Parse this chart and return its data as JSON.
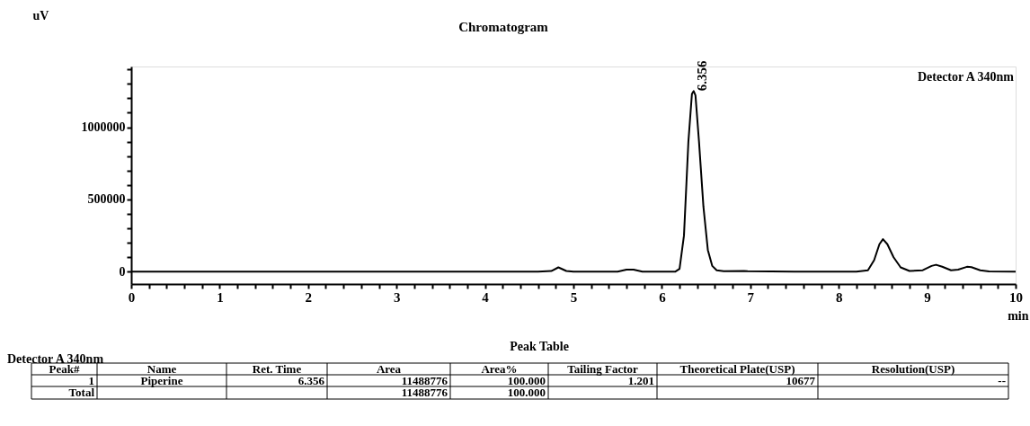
{
  "chart_data": {
    "type": "line",
    "title": "Chromatogram",
    "xlabel": "min",
    "ylabel": "uV",
    "x": [
      0,
      4.6,
      4.75,
      4.83,
      4.92,
      5.0,
      5.5,
      5.6,
      5.68,
      5.78,
      6.15,
      6.2,
      6.25,
      6.3,
      6.34,
      6.36,
      6.38,
      6.42,
      6.47,
      6.52,
      6.57,
      6.62,
      6.7,
      6.93,
      6.97,
      7.5,
      8.2,
      8.33,
      8.4,
      8.46,
      8.5,
      8.55,
      8.62,
      8.7,
      8.8,
      8.95,
      9.05,
      9.1,
      9.17,
      9.27,
      9.35,
      9.45,
      9.5,
      9.6,
      9.7,
      10
    ],
    "series": [
      {
        "color": "#000000",
        "values": [
          0,
          0,
          5000,
          30000,
          5000,
          0,
          0,
          15000,
          15000,
          0,
          0,
          20000,
          250000,
          900000,
          1230000,
          1250000,
          1220000,
          900000,
          450000,
          150000,
          40000,
          10000,
          3000,
          5000,
          3000,
          0,
          0,
          10000,
          80000,
          190000,
          225000,
          190000,
          100000,
          30000,
          5000,
          10000,
          40000,
          48000,
          35000,
          10000,
          15000,
          34000,
          32000,
          10000,
          2000,
          0
        ]
      }
    ],
    "xlim": [
      0,
      10
    ],
    "ylim": [
      -85000,
      1420000
    ],
    "xticks": [
      0,
      {
        "value": 0.2,
        "label": null
      },
      {
        "value": 0.4,
        "label": null
      },
      {
        "value": 0.6,
        "label": null
      },
      {
        "value": 0.8,
        "label": null
      },
      1,
      {
        "value": 1.2,
        "label": null
      },
      {
        "value": 1.4,
        "label": null
      },
      {
        "value": 1.6,
        "label": null
      },
      {
        "value": 1.8,
        "label": null
      },
      2,
      {
        "value": 2.2,
        "label": null
      },
      {
        "value": 2.4,
        "label": null
      },
      {
        "value": 2.6,
        "label": null
      },
      {
        "value": 2.8,
        "label": null
      },
      3,
      {
        "value": 3.2,
        "label": null
      },
      {
        "value": 3.4,
        "label": null
      },
      {
        "value": 3.6,
        "label": null
      },
      {
        "value": 3.8,
        "label": null
      },
      4,
      {
        "value": 4.2,
        "label": null
      },
      {
        "value": 4.4,
        "label": null
      },
      {
        "value": 4.6,
        "label": null
      },
      {
        "value": 4.8,
        "label": null
      },
      5,
      {
        "value": 5.2,
        "label": null
      },
      {
        "value": 5.4,
        "label": null
      },
      {
        "value": 5.6,
        "label": null
      },
      {
        "value": 5.8,
        "label": null
      },
      6,
      {
        "value": 6.2,
        "label": null
      },
      {
        "value": 6.4,
        "label": null
      },
      {
        "value": 6.6,
        "label": null
      },
      {
        "value": 6.8,
        "label": null
      },
      7,
      {
        "value": 7.2,
        "label": null
      },
      {
        "value": 7.4,
        "label": null
      },
      {
        "value": 7.6,
        "label": null
      },
      {
        "value": 7.8,
        "label": null
      },
      8,
      {
        "value": 8.2,
        "label": null
      },
      {
        "value": 8.4,
        "label": null
      },
      {
        "value": 8.6,
        "label": null
      },
      {
        "value": 8.8,
        "label": null
      },
      9,
      {
        "value": 9.2,
        "label": null
      },
      {
        "value": 9.4,
        "label": null
      },
      {
        "value": 9.6,
        "label": null
      },
      {
        "value": 9.8,
        "label": null
      },
      10
    ],
    "yticks": [
      0,
      {
        "value": 100000,
        "label": null
      },
      {
        "value": 200000,
        "label": null
      },
      {
        "value": 300000,
        "label": null
      },
      {
        "value": 400000,
        "label": null
      },
      500000,
      {
        "value": 600000,
        "label": null
      },
      {
        "value": 700000,
        "label": null
      },
      {
        "value": 800000,
        "label": null
      },
      {
        "value": 900000,
        "label": null
      },
      1000000,
      {
        "value": 1100000,
        "label": null
      },
      {
        "value": 1200000,
        "label": null
      },
      {
        "value": 1300000,
        "label": null
      },
      {
        "value": 1400000,
        "label": null
      }
    ],
    "grid": false,
    "marker": "none",
    "line_style": "solid",
    "annotations": [
      {
        "text": "6.356",
        "x": 6.356,
        "y": 1250000
      },
      "Detector A 340nm",
      "Peak Table",
      "Detector A 340nm",
      "Peak#",
      "Name",
      "Ret. Time",
      "Area",
      "Area%",
      "Tailing Factor",
      "Theoretical Plate(USP)",
      "Resolution(USP)",
      "1",
      "Piperine",
      "6.356",
      "11488776",
      "100.000",
      "1.201",
      "10677",
      "--",
      "Total",
      null,
      null,
      "11488776",
      "100.000",
      null,
      null,
      null
    ]
  }
}
